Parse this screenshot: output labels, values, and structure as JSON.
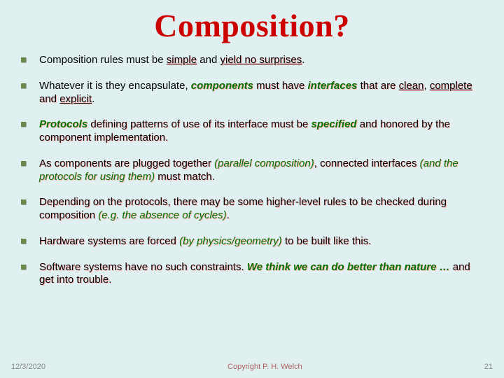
{
  "title": "Composition?",
  "bullets": [
    {
      "html": "Composition rules must be <span class='ushad'>simple</span> and <span class='ushad'>yield no surprises</span>."
    },
    {
      "html": "Whatever it is they encapsulate, <span class='greenB sh'>components</span> <span class='sh'>must have</span> <span class='greenB sh'>interfaces</span> <span class='sh'>that are</span> <span class='ushad'>clean</span>, <span class='ushad'>complete</span> <span class='sh'>and</span> <span class='ushad'>explicit</span>."
    },
    {
      "html": "<span class='greenB sh'>Protocols</span> <span class='sh'>defining patterns of use of its interface must be</span> <span class='greenB sh'>specified</span> <span class='sh'>and honored by the component implementation.</span>"
    },
    {
      "html": "<span class='sh'>As components are plugged together</span> <span class='green sh'>(parallel composition)</span><span class='sh'>, connected interfaces</span> <span class='green sh'>(and the protocols for using them)</span> <span class='sh'>must match</span>."
    },
    {
      "html": "<span class='sh'>Depending on the protocols, there may be some higher-level rules to be checked during composition</span> <span class='green sh'>(e.g. the absence of cycles)</span><span class='sh'>.</span>"
    },
    {
      "html": "<span class='sh'>Hardware systems are forced</span> <span class='green sh'>(by physics/geometry)</span> <span class='sh'>to be built like this.</span>"
    },
    {
      "html": "<span class='sh'>Software systems have no such constraints.</span> <span class='greenB sh'>We think we can do better than nature …</span> <span class='sh'>and get into trouble.</span>"
    }
  ],
  "footer": {
    "date": "12/3/2020",
    "copyright": "Copyright P. H. Welch",
    "page": "21"
  },
  "colors": {
    "background": "#e0f0f0",
    "title": "#cc0000",
    "bullet_square": "#6a8a4a",
    "green": "#007000",
    "shadow": "#ffb0b0"
  }
}
